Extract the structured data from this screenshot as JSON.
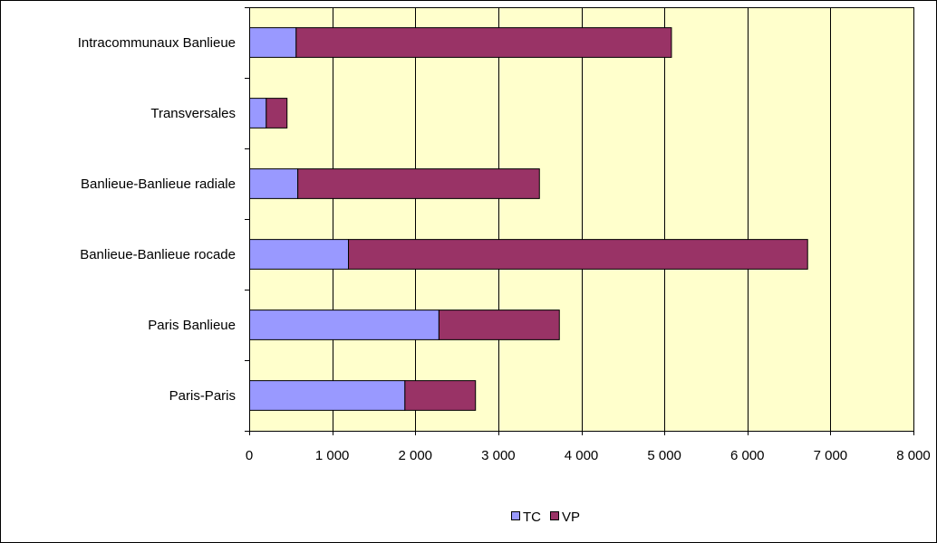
{
  "chart_data": {
    "type": "bar",
    "orientation": "horizontal",
    "stacked": true,
    "title": "",
    "xlabel": "",
    "ylabel": "",
    "categories": [
      "Paris-Paris",
      "Paris Banlieue",
      "Banlieue-Banlieue rocade",
      "Banlieue-Banlieue radiale",
      "Transversales",
      "Intracommunaux Banlieue"
    ],
    "series": [
      {
        "name": "TC",
        "color": "#9999ff",
        "values": [
          1870,
          2280,
          1190,
          580,
          200,
          560
        ]
      },
      {
        "name": "VP",
        "color": "#993366",
        "values": [
          850,
          1450,
          5530,
          2910,
          250,
          4520
        ]
      }
    ],
    "xlim": [
      0,
      8000
    ],
    "xticks": [
      0,
      1000,
      2000,
      3000,
      4000,
      5000,
      6000,
      7000,
      8000
    ],
    "xtick_labels": [
      "0",
      "1 000",
      "2 000",
      "3 000",
      "4 000",
      "5 000",
      "6 000",
      "7 000",
      "8 000"
    ],
    "grid": "vertical",
    "plot_background": "#ffffcc",
    "legend_position": "bottom"
  }
}
